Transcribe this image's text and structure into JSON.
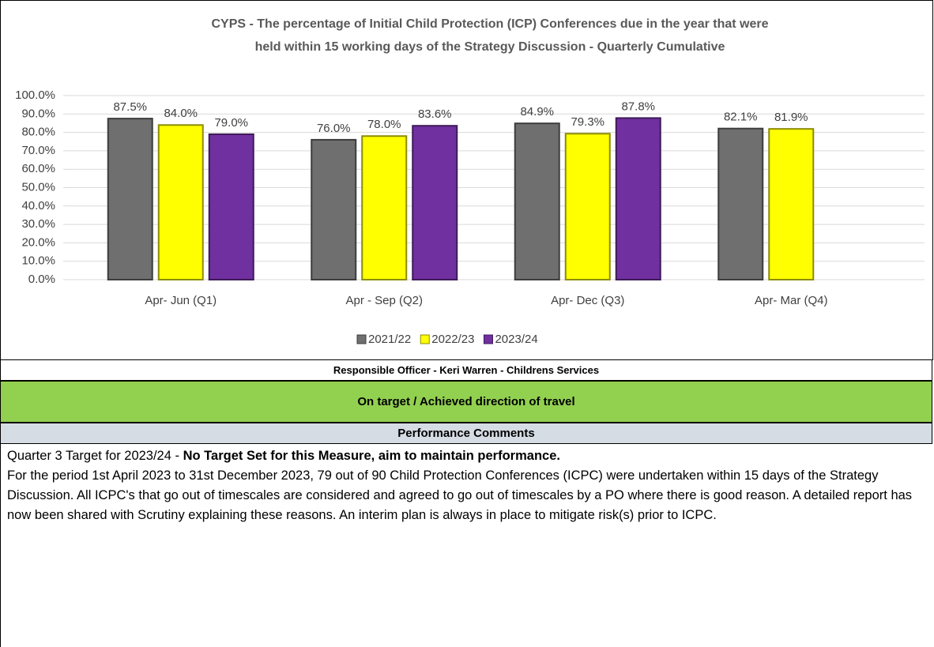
{
  "chart_data": {
    "type": "bar",
    "title": "CYPS -  The percentage of Initial Child Protection (ICP) Conferences due in the year that were",
    "subtitle": "held within 15 working days of the Strategy Discussion - Quarterly Cumulative",
    "categories": [
      "Apr- Jun  (Q1)",
      "Apr - Sep  (Q2)",
      "Apr- Dec  (Q3)",
      "Apr- Mar  (Q4)"
    ],
    "series": [
      {
        "name": "2021/22",
        "color": "#6f6f6f",
        "values": [
          87.5,
          76.0,
          84.9,
          82.1
        ],
        "value_labels": [
          "87.5%",
          "76.0%",
          "84.9%",
          "82.1%"
        ]
      },
      {
        "name": "2022/23",
        "color": "#ffff00",
        "values": [
          84.0,
          78.0,
          79.3,
          81.9
        ],
        "value_labels": [
          "84.0%",
          "78.0%",
          "79.3%",
          "81.9%"
        ]
      },
      {
        "name": "2023/24",
        "color": "#7030a0",
        "values": [
          79.0,
          83.6,
          87.8,
          null
        ],
        "value_labels": [
          "79.0%",
          "83.6%",
          "87.8%",
          null
        ]
      }
    ],
    "ylim": [
      0,
      100
    ],
    "yticks": [
      {
        "value": 0,
        "label": "0.0%"
      },
      {
        "value": 10,
        "label": "10.0%"
      },
      {
        "value": 20,
        "label": "20.0%"
      },
      {
        "value": 30,
        "label": "30.0%"
      },
      {
        "value": 40,
        "label": "40.0%"
      },
      {
        "value": 50,
        "label": "50.0%"
      },
      {
        "value": 60,
        "label": "60.0%"
      },
      {
        "value": 70,
        "label": "70.0%"
      },
      {
        "value": 80,
        "label": "80.0%"
      },
      {
        "value": 90,
        "label": "90.0%"
      },
      {
        "value": 100,
        "label": "100.0%"
      }
    ],
    "grid": true,
    "legend": "bottom"
  },
  "officer": "Responsible Officer - Keri Warren - Childrens Services",
  "status": "On target / Achieved direction of travel",
  "comments_heading": "Performance Comments",
  "comments_lead": "Quarter 3 Target for 2023/24 - ",
  "comments_lead_bold": "No Target Set for this Measure, aim to maintain performance.",
  "comments_body": "For the period 1st April 2023 to 31st December 2023, 79 out of 90 Child Protection Conferences (ICPC) were undertaken within 15 days of the Strategy Discussion. All ICPC's that go out of timescales are considered and agreed to go out of timescales by a PO where there is good reason. A detailed report has now been shared with Scrutiny explaining these reasons.  An interim plan is always in place to mitigate risk(s) prior to ICPC."
}
